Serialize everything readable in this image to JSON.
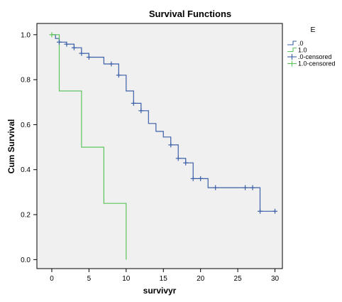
{
  "chart_data": {
    "type": "line",
    "subtype": "kaplan-meier step plot",
    "title": "Survival Functions",
    "xlabel": "survivyr",
    "ylabel": "Cum Survival",
    "xlim": [
      -2,
      31
    ],
    "ylim": [
      -0.04,
      1.05
    ],
    "xticks": [
      0,
      5,
      10,
      15,
      20,
      25,
      30
    ],
    "yticks": [
      0.0,
      0.2,
      0.4,
      0.6,
      0.8,
      1.0
    ],
    "ytick_labels": [
      "0.0",
      "0.2",
      "0.4",
      "0.6",
      "0.8",
      "1.0"
    ],
    "grid": false,
    "legend": {
      "placement": "right",
      "title": "E",
      "entries": [
        ".0",
        "1.0",
        ".0-censored",
        "1.0-censored"
      ]
    },
    "series": [
      {
        "name": ".0",
        "color": "#3b5fa8",
        "x": [
          0,
          0.5,
          0.5,
          1,
          1,
          2,
          2,
          3,
          3,
          4,
          4,
          5,
          5,
          7,
          7,
          9,
          9,
          10,
          10,
          11,
          11,
          12,
          12,
          13,
          13,
          14,
          14,
          15,
          15,
          16,
          16,
          17,
          17,
          18,
          18,
          19,
          19,
          21,
          21,
          28,
          28,
          30
        ],
        "y": [
          1.0,
          1.0,
          0.983,
          0.983,
          0.967,
          0.967,
          0.958,
          0.958,
          0.942,
          0.942,
          0.917,
          0.917,
          0.9,
          0.9,
          0.87,
          0.87,
          0.82,
          0.82,
          0.75,
          0.75,
          0.695,
          0.695,
          0.662,
          0.662,
          0.605,
          0.605,
          0.57,
          0.57,
          0.545,
          0.545,
          0.51,
          0.51,
          0.45,
          0.45,
          0.43,
          0.43,
          0.36,
          0.36,
          0.32,
          0.32,
          0.215,
          0.215
        ]
      },
      {
        "name": "1.0",
        "color": "#5cc45c",
        "x": [
          0,
          1,
          1,
          4,
          4,
          7,
          7,
          10,
          10
        ],
        "y": [
          1.0,
          1.0,
          0.75,
          0.75,
          0.5,
          0.5,
          0.25,
          0.25,
          0.0
        ]
      }
    ],
    "censored": [
      {
        "name": ".0-censored",
        "color": "#3b5fa8",
        "points": [
          [
            1,
            0.967
          ],
          [
            2,
            0.958
          ],
          [
            3,
            0.942
          ],
          [
            4,
            0.917
          ],
          [
            5,
            0.9
          ],
          [
            8,
            0.87
          ],
          [
            9,
            0.82
          ],
          [
            11,
            0.695
          ],
          [
            12,
            0.662
          ],
          [
            16,
            0.51
          ],
          [
            17,
            0.45
          ],
          [
            18,
            0.43
          ],
          [
            19,
            0.36
          ],
          [
            20,
            0.36
          ],
          [
            22,
            0.32
          ],
          [
            26,
            0.32
          ],
          [
            27,
            0.32
          ],
          [
            28,
            0.215
          ],
          [
            30,
            0.215
          ]
        ]
      },
      {
        "name": "1.0-censored",
        "color": "#5cc45c",
        "points": [
          [
            0,
            1.0
          ]
        ]
      }
    ],
    "plot_background": "#f0f0f0"
  }
}
